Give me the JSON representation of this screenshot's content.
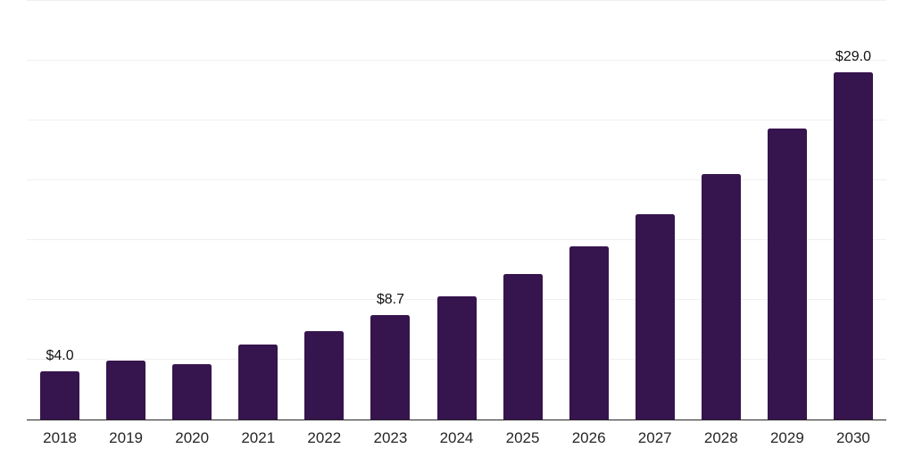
{
  "chart_data": {
    "type": "bar",
    "title": "",
    "xlabel": "",
    "ylabel": "",
    "categories": [
      "2018",
      "2019",
      "2020",
      "2021",
      "2022",
      "2023",
      "2024",
      "2025",
      "2026",
      "2027",
      "2028",
      "2029",
      "2030"
    ],
    "values": [
      4.0,
      4.9,
      4.6,
      6.3,
      7.4,
      8.7,
      10.3,
      12.2,
      14.5,
      17.2,
      20.5,
      24.3,
      29.0
    ],
    "bar_labels": [
      "$4.0",
      "",
      "",
      "",
      "",
      "$8.7",
      "",
      "",
      "",
      "",
      "",
      "",
      "$29.0"
    ],
    "ylim": [
      0,
      35
    ],
    "grid_step": 5,
    "grid": "horizontal",
    "legend": "none",
    "y_tick_labels_shown": false,
    "colors": {
      "bar": "#36144d",
      "grid": "#f0f0f1",
      "axis": "#262626",
      "tick_label": "#262626",
      "value_label": "#111111",
      "background": "#ffffff"
    }
  }
}
